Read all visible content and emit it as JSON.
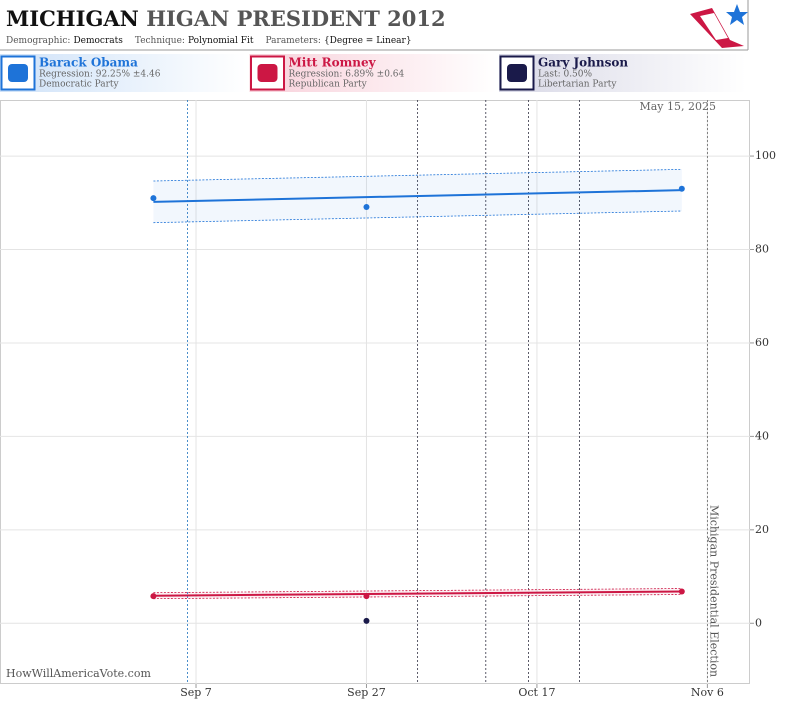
{
  "chart_data": {
    "type": "scatter",
    "title_main": "MICHIGAN",
    "title_rest": "HIGAN PRESIDENT 2012",
    "subtitle": [
      {
        "label": "Demographic:",
        "value": "Democrats"
      },
      {
        "label": "Technique:",
        "value": "Polynomial Fit"
      },
      {
        "label": "Parameters:",
        "value": "{Degree = Linear}"
      }
    ],
    "date_stamp": "May 15, 2025",
    "source": "HowWillAmericaVote.com",
    "xlim": [
      "2012-08-15",
      "2012-11-11"
    ],
    "xticks": [
      {
        "value": "2012-09-07",
        "label": "Sep 7"
      },
      {
        "value": "2012-09-27",
        "label": "Sep 27"
      },
      {
        "value": "2012-10-17",
        "label": "Oct 17"
      },
      {
        "value": "2012-11-06",
        "label": "Nov 6"
      }
    ],
    "ylim": [
      -13,
      112
    ],
    "yticks": [
      0,
      20,
      40,
      60,
      80,
      100
    ],
    "grid": true,
    "events": [
      {
        "date": "2012-09-06",
        "color": "#1e73be"
      },
      {
        "date": "2012-10-03",
        "color": "#333344"
      },
      {
        "date": "2012-10-11",
        "color": "#333344"
      },
      {
        "date": "2012-10-16",
        "color": "#333344"
      },
      {
        "date": "2012-10-22",
        "color": "#333344"
      },
      {
        "date": "2012-11-06",
        "color": "#666666",
        "label": "Michigan Presidential Election"
      }
    ],
    "series": [
      {
        "name": "Barack Obama",
        "color": "#1e73d8",
        "detail": "Regression: 92.25% ±4.46",
        "party": "Democratic Party",
        "x": [
          "2012-09-02",
          "2012-09-27",
          "2012-11-03"
        ],
        "values": [
          91.0,
          89.1,
          93.0
        ],
        "trend": {
          "x": [
            "2012-09-02",
            "2012-11-03"
          ],
          "values": [
            90.2,
            92.7
          ],
          "band": 4.46
        }
      },
      {
        "name": "Mitt Romney",
        "color": "#cc1744",
        "detail": "Regression: 6.89% ±0.64",
        "party": "Republican Party",
        "x": [
          "2012-09-02",
          "2012-09-27",
          "2012-11-03"
        ],
        "values": [
          5.8,
          5.8,
          6.8
        ],
        "trend": {
          "x": [
            "2012-09-02",
            "2012-11-03"
          ],
          "values": [
            5.9,
            6.8
          ],
          "band": 0.64
        }
      },
      {
        "name": "Gary Johnson",
        "color": "#1a1a4a",
        "detail": "Last: 0.50%",
        "party": "Libertarian Party",
        "x": [
          "2012-09-27"
        ],
        "values": [
          0.5
        ]
      }
    ]
  }
}
